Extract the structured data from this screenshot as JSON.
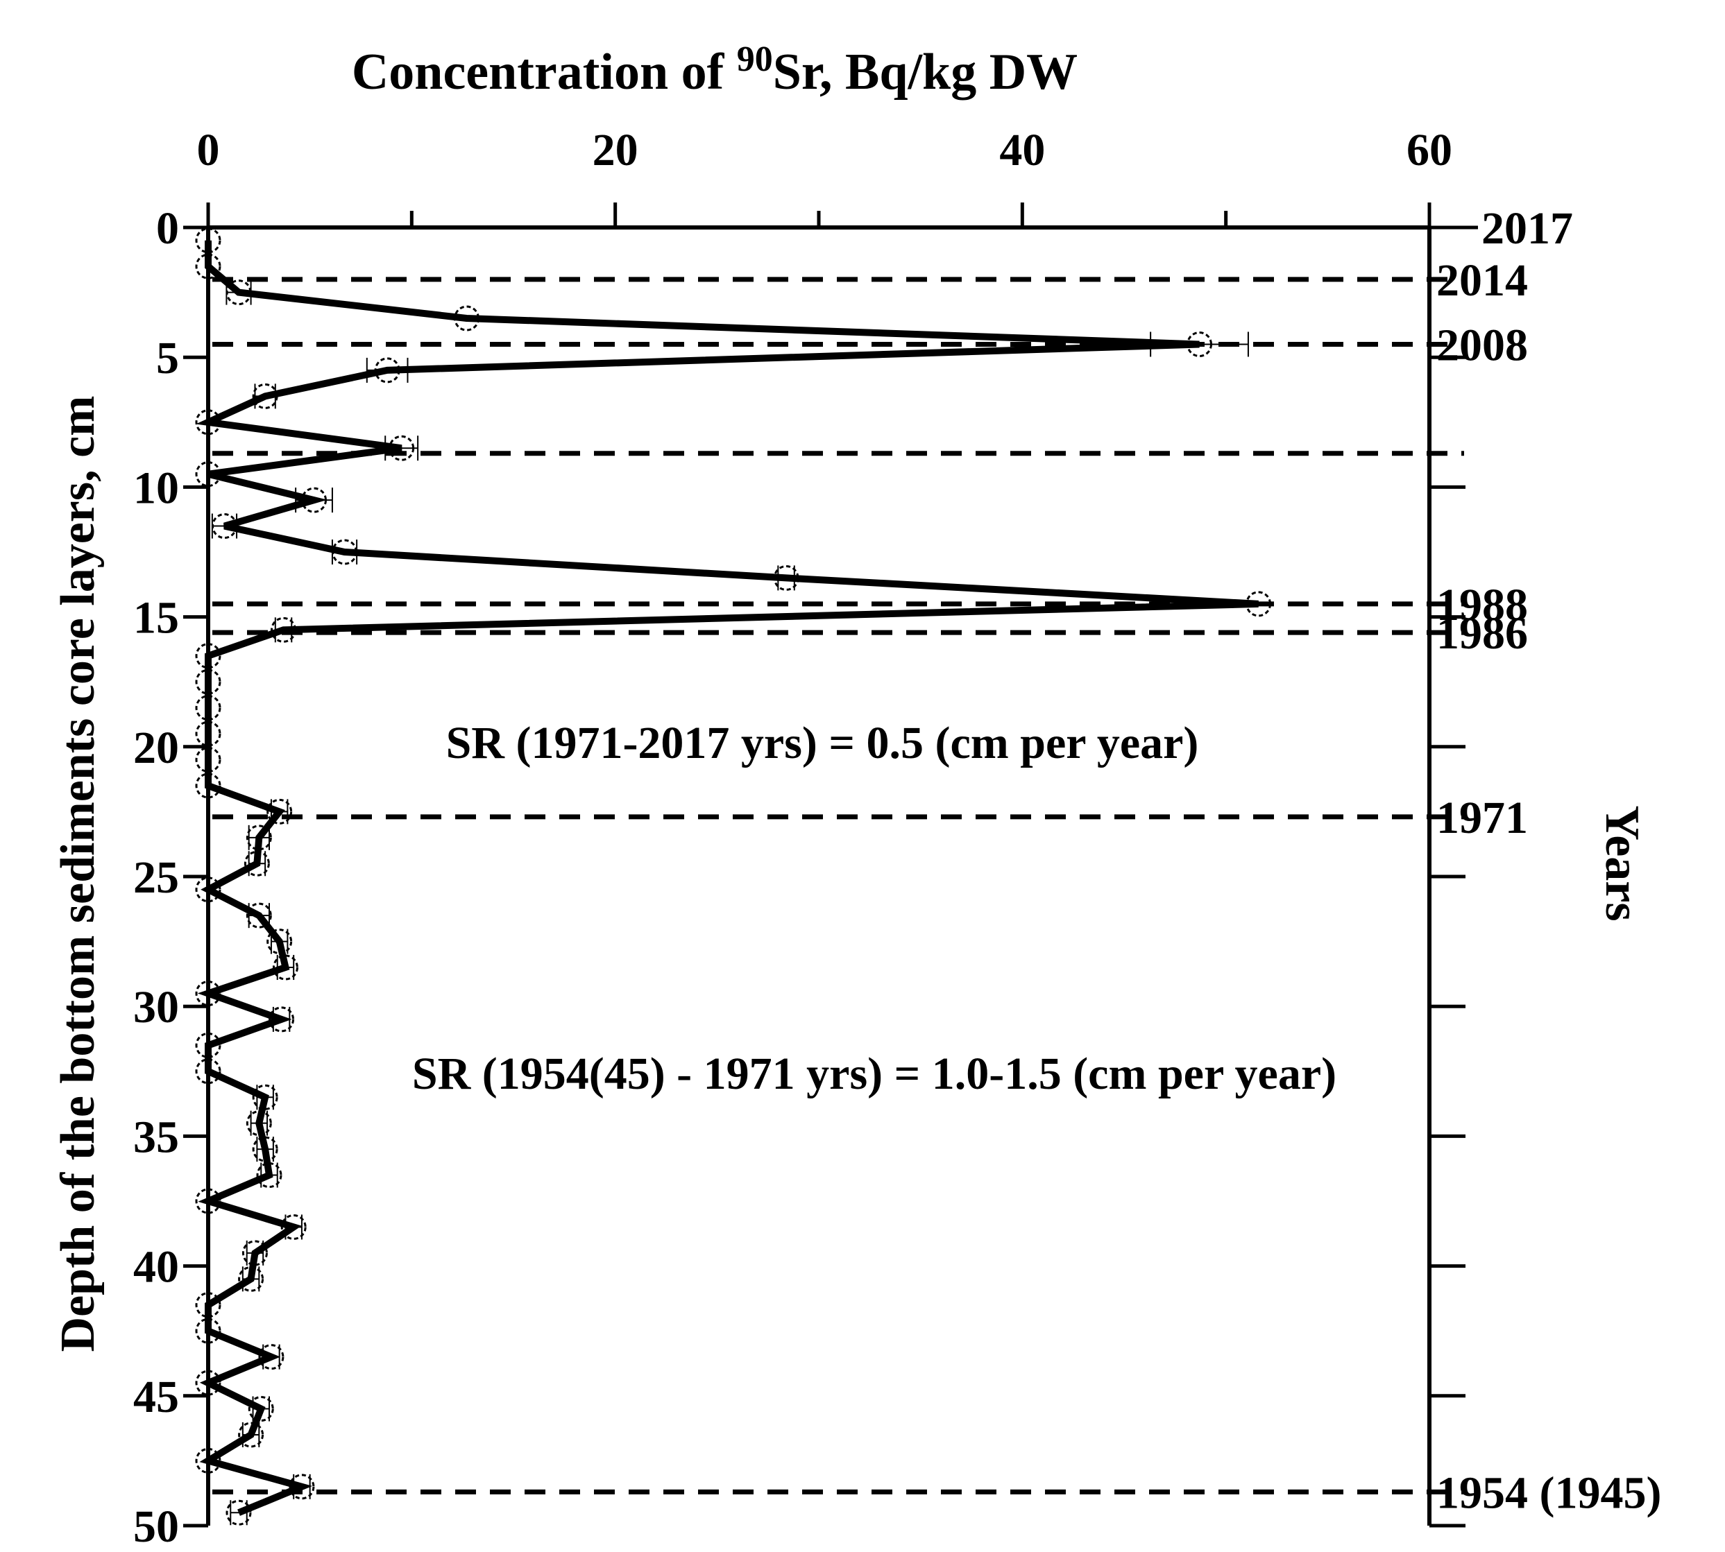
{
  "chart_data": {
    "type": "line",
    "title": {
      "prefix": "Concentration of ",
      "superscript": "90",
      "suffix": "Sr, Bq/kg DW"
    },
    "xlabel": "Concentration of 90Sr, Bq/kg DW",
    "ylabel": "Depth of the bottom sediments core layers, cm",
    "right_axis_label": "Years",
    "xlim": [
      0,
      60
    ],
    "ylim": [
      0,
      50
    ],
    "y_inverted": true,
    "x_ticks": [
      0,
      20,
      40,
      60
    ],
    "x_tick_labels": [
      "0",
      "20",
      "40",
      "60"
    ],
    "y_ticks": [
      0,
      5,
      10,
      15,
      20,
      25,
      30,
      35,
      40,
      45,
      50
    ],
    "y_tick_labels": [
      "0",
      "5",
      "10",
      "15",
      "20",
      "25",
      "30",
      "35",
      "40",
      "45",
      "50"
    ],
    "series": [
      {
        "name": "90Sr concentration",
        "depth": [
          0.5,
          1.5,
          2.5,
          3.5,
          4.5,
          5.5,
          6.5,
          7.5,
          8.5,
          9.5,
          10.5,
          11.5,
          12.5,
          13.5,
          14.5,
          15.5,
          16.5,
          17.5,
          18.5,
          19.5,
          20.5,
          21.5,
          22.5,
          23.5,
          24.5,
          25.5,
          26.5,
          27.5,
          28.5,
          29.5,
          30.5,
          31.5,
          32.5,
          33.5,
          34.5,
          35.5,
          36.5,
          37.5,
          38.5,
          39.5,
          40.5,
          41.5,
          42.5,
          43.5,
          44.5,
          45.5,
          46.5,
          47.5,
          48.5,
          49.5
        ],
        "values": [
          0,
          0,
          1.5,
          12.7,
          48.7,
          8.8,
          2.8,
          0,
          9.5,
          0,
          5.2,
          0.8,
          6.7,
          28.4,
          51.6,
          3.7,
          0,
          0,
          0,
          0,
          0,
          0,
          3.5,
          2.5,
          2.4,
          0,
          2.5,
          3.5,
          3.8,
          0,
          3.6,
          0,
          0,
          2.8,
          2.5,
          2.8,
          3.0,
          0,
          4.2,
          2.3,
          2.1,
          0,
          0,
          3.1,
          0,
          2.6,
          2.1,
          0,
          4.6,
          1.5
        ],
        "errors": [
          0,
          0,
          0.6,
          0,
          2.4,
          1.0,
          0.5,
          0,
          0.8,
          0,
          0.9,
          0.6,
          0.6,
          0.4,
          0,
          0.4,
          0,
          0,
          0,
          0,
          0,
          0,
          0.4,
          0.5,
          0.4,
          0,
          0.5,
          0.4,
          0.4,
          0,
          0.4,
          0,
          0,
          0.4,
          0.4,
          0.4,
          0.4,
          0,
          0.4,
          0.4,
          0.4,
          0,
          0,
          0.4,
          0,
          0.4,
          0.4,
          0,
          0.4,
          0.4
        ]
      }
    ],
    "year_markers": [
      {
        "label": "2017",
        "depth": 0,
        "dashed": false
      },
      {
        "label": "2014",
        "depth": 2,
        "dashed": true
      },
      {
        "label": "2008",
        "depth": 4.5,
        "dashed": true
      },
      {
        "label": "",
        "depth": 8.7,
        "dashed": true
      },
      {
        "label": "1988",
        "depth": 14.5,
        "dashed": true
      },
      {
        "label": "1986",
        "depth": 15.6,
        "dashed": true
      },
      {
        "label": "1971",
        "depth": 22.7,
        "dashed": true
      },
      {
        "label": "1954 (1945)",
        "depth": 48.7,
        "dashed": true
      }
    ],
    "right_axis_ticks": [
      0,
      5,
      10,
      15,
      20,
      25,
      30,
      35,
      40,
      45,
      50
    ],
    "annotations": [
      "SR (1971-2017 yrs) = 0.5 (cm per year)",
      "SR (1954(45) - 1971 yrs) = 1.0-1.5 (cm per year)"
    ]
  }
}
